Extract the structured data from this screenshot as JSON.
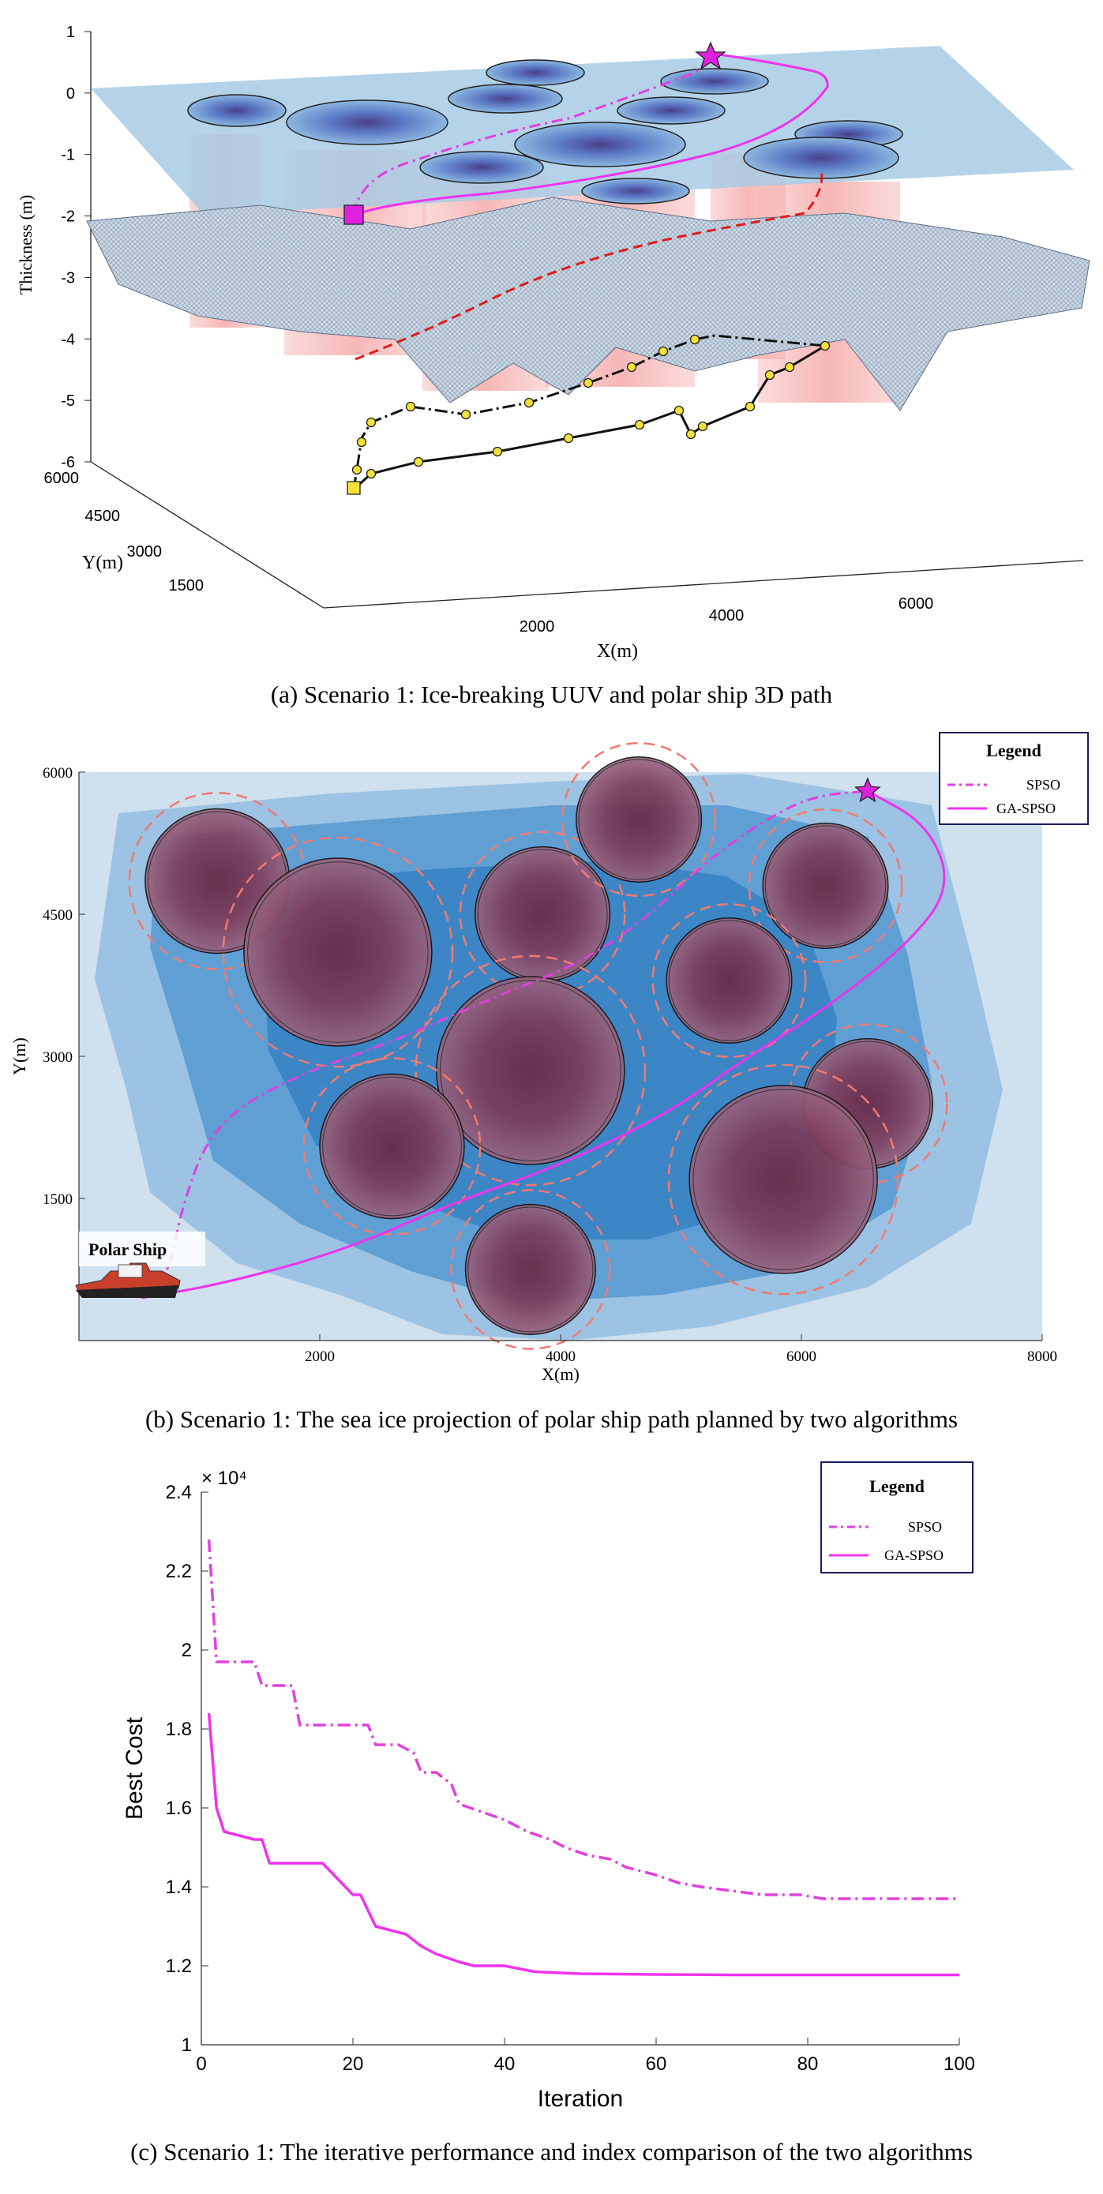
{
  "captions": {
    "a": "(a)    Scenario 1: Ice-breaking UUV and polar ship 3D path",
    "b": "(b) Scenario 1: The sea ice projection of polar ship path planned by two algorithms",
    "c": "(c) Scenario 1: The iterative performance and index comparison of the two algorithms"
  },
  "colors": {
    "spso": "#e040e0",
    "gaspso": "#ee33ee",
    "ice_light": "#bcd8ea",
    "ice_mid": "#6ea8d6",
    "ice_dark": "#2f7cc0",
    "obstacle": "#8a4f6e",
    "obstacle_core": "#6a2845",
    "danger_ring": "#f07a70",
    "uuv_path": "#000000",
    "waypoint": "#f4e23a",
    "legend_border": "#1a1a5e"
  },
  "chart_data": [
    {
      "type": "scatter",
      "id": "a",
      "xlabel": "X(m)",
      "ylabel": "Y(m)",
      "zlabel": "Thickness (m)",
      "x_ticks": [
        "2000",
        "4000",
        "6000"
      ],
      "y_ticks": [
        "6000",
        "4500",
        "3000",
        "1500"
      ],
      "z_ticks": [
        "1",
        "0",
        "-1",
        "-2",
        "-3",
        "-4",
        "-5",
        "-6"
      ],
      "zlim": [
        -6,
        1
      ],
      "markers": {
        "start": "square",
        "goal": "star"
      }
    },
    {
      "type": "line",
      "id": "b",
      "xlabel": "X(m)",
      "ylabel": "Y(m)",
      "xlim": [
        0,
        8000
      ],
      "ylim": [
        0,
        6000
      ],
      "x_ticks": [
        "2000",
        "4000",
        "6000",
        "8000"
      ],
      "y_ticks": [
        "1500",
        "3000",
        "4500",
        "6000"
      ],
      "legend": {
        "title": "Legend",
        "position": "top-right"
      },
      "annotation": "Polar Ship",
      "obstacles": [
        {
          "x": 1150,
          "y": 4850,
          "r": 600
        },
        {
          "x": 2150,
          "y": 4100,
          "r": 780
        },
        {
          "x": 3850,
          "y": 4500,
          "r": 560
        },
        {
          "x": 4650,
          "y": 5500,
          "r": 520
        },
        {
          "x": 6200,
          "y": 4800,
          "r": 520
        },
        {
          "x": 5400,
          "y": 3800,
          "r": 520
        },
        {
          "x": 3750,
          "y": 2850,
          "r": 780
        },
        {
          "x": 2600,
          "y": 2050,
          "r": 600
        },
        {
          "x": 6550,
          "y": 2500,
          "r": 540
        },
        {
          "x": 5850,
          "y": 1700,
          "r": 780
        },
        {
          "x": 3750,
          "y": 750,
          "r": 540
        }
      ],
      "series": [
        {
          "name": "SPSO",
          "style": "dashdot",
          "points": [
            [
              520,
              450
            ],
            [
              750,
              700
            ],
            [
              850,
              1400
            ],
            [
              1100,
              2250
            ],
            [
              1700,
              2750
            ],
            [
              2600,
              3150
            ],
            [
              3400,
              3600
            ],
            [
              4200,
              4000
            ],
            [
              4800,
              4550
            ],
            [
              5200,
              5050
            ],
            [
              5700,
              5500
            ],
            [
              6100,
              5750
            ],
            [
              6550,
              5800
            ]
          ]
        },
        {
          "name": "GA-SPSO",
          "style": "solid",
          "points": [
            [
              520,
              450
            ],
            [
              1200,
              600
            ],
            [
              2200,
              950
            ],
            [
              3100,
              1450
            ],
            [
              4000,
              1850
            ],
            [
              4900,
              2400
            ],
            [
              5500,
              2950
            ],
            [
              6200,
              3500
            ],
            [
              6900,
              4200
            ],
            [
              7250,
              4800
            ],
            [
              7050,
              5450
            ],
            [
              6550,
              5800
            ]
          ]
        }
      ]
    },
    {
      "type": "line",
      "id": "c",
      "xlabel": "Iteration",
      "ylabel": "Best Cost",
      "exponent_label": "× 10⁴",
      "xlim": [
        0,
        100
      ],
      "ylim": [
        1,
        2.4
      ],
      "x_ticks": [
        "0",
        "20",
        "40",
        "60",
        "80",
        "100"
      ],
      "y_ticks": [
        "1",
        "1.2",
        "1.4",
        "1.6",
        "1.8",
        "2",
        "2.2",
        "2.4"
      ],
      "legend": {
        "title": "Legend",
        "position": "top-right"
      },
      "series": [
        {
          "name": "SPSO",
          "style": "dashdot",
          "x": [
            1,
            2,
            7,
            8,
            12,
            13,
            22,
            23,
            26,
            28,
            29,
            31,
            33,
            34,
            37,
            40,
            43,
            46,
            48,
            51,
            54,
            56,
            60,
            63,
            66,
            70,
            74,
            79,
            82,
            90,
            100
          ],
          "y": [
            2.28,
            1.97,
            1.97,
            1.91,
            1.91,
            1.81,
            1.81,
            1.76,
            1.76,
            1.74,
            1.69,
            1.69,
            1.66,
            1.61,
            1.59,
            1.57,
            1.54,
            1.52,
            1.5,
            1.48,
            1.47,
            1.45,
            1.43,
            1.41,
            1.4,
            1.39,
            1.38,
            1.38,
            1.37,
            1.37,
            1.37
          ]
        },
        {
          "name": "GA-SPSO",
          "style": "solid",
          "x": [
            1,
            2,
            3,
            5,
            7,
            8,
            9,
            16,
            18,
            20,
            21,
            22,
            23,
            25,
            27,
            29,
            31,
            34,
            36,
            40,
            44,
            50,
            60,
            70,
            80,
            90,
            100
          ],
          "y": [
            1.84,
            1.6,
            1.54,
            1.53,
            1.52,
            1.52,
            1.46,
            1.46,
            1.42,
            1.38,
            1.38,
            1.34,
            1.3,
            1.29,
            1.28,
            1.25,
            1.23,
            1.21,
            1.2,
            1.2,
            1.185,
            1.18,
            1.178,
            1.177,
            1.177,
            1.177,
            1.177
          ]
        }
      ]
    }
  ]
}
